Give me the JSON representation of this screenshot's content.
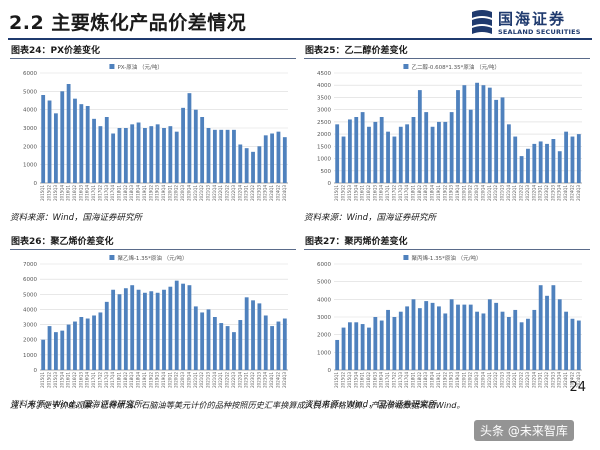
{
  "slide": {
    "title": "2.2 主要炼化产品价差情况",
    "logo_cn": "国海证券",
    "logo_en": "SEALAND SECURITIES",
    "page_number": "24",
    "note": "注：为了便于价差观察，已将原油、石脑油等美元计价的品种按照历史汇率换算成人民币价格测算。产品价格数据来自Wind。",
    "watermark": "头条 @未来智库"
  },
  "chart_data": [
    {
      "type": "bar",
      "header": "图表24：PX价差变化",
      "legend": "PX-原油 （元/吨）",
      "source": "资料来源：Wind，国海证券研究所",
      "ylim": [
        0,
        6000
      ],
      "yticks": [
        0,
        1000,
        2000,
        3000,
        4000,
        5000,
        6000
      ],
      "categories": [
        "2015Q1",
        "2015Q2",
        "2015Q3",
        "2015Q4",
        "2016Q1",
        "2016Q2",
        "2016Q3",
        "2016Q4",
        "2017Q1",
        "2017Q2",
        "2017Q3",
        "2017Q4",
        "2018Q1",
        "2018Q2",
        "2018Q3",
        "2018Q4",
        "2019Q1",
        "2019Q2",
        "2019Q3",
        "2019Q4",
        "2020Q1",
        "2020Q2",
        "2020Q3",
        "2020Q4",
        "2021Q1",
        "2021Q2",
        "2021Q3",
        "2021Q4",
        "2022Q1",
        "2022Q2",
        "2022Q3",
        "2022Q4",
        "2023Q1",
        "2023Q2",
        "2023Q3",
        "2023Q4",
        "2024Q1",
        "2024Q2",
        "2024Q3"
      ],
      "values": [
        4800,
        4500,
        3800,
        5000,
        5400,
        4600,
        4300,
        4200,
        3500,
        3100,
        3600,
        2700,
        3000,
        3000,
        3200,
        3300,
        3000,
        3100,
        3200,
        3000,
        3100,
        2800,
        4100,
        4900,
        4000,
        3600,
        3000,
        2900,
        2900,
        2900,
        2900,
        2100,
        1900,
        1700,
        2000,
        2600,
        2700,
        2800,
        2500
      ]
    },
    {
      "type": "bar",
      "header": "图表25：乙二醇价差变化",
      "legend": "乙二醇-0.608*1.35*原油 （元/吨）",
      "source": "资料来源：Wind，国海证券研究所",
      "ylim": [
        0,
        4500
      ],
      "yticks": [
        0,
        500,
        1000,
        1500,
        2000,
        2500,
        3000,
        3500,
        4000,
        4500
      ],
      "categories": [
        "2015Q1",
        "2015Q2",
        "2015Q3",
        "2015Q4",
        "2016Q1",
        "2016Q2",
        "2016Q3",
        "2016Q4",
        "2017Q1",
        "2017Q2",
        "2017Q3",
        "2017Q4",
        "2018Q1",
        "2018Q2",
        "2018Q3",
        "2018Q4",
        "2019Q1",
        "2019Q2",
        "2019Q3",
        "2019Q4",
        "2020Q1",
        "2020Q2",
        "2020Q3",
        "2020Q4",
        "2021Q1",
        "2021Q2",
        "2021Q3",
        "2021Q4",
        "2022Q1",
        "2022Q2",
        "2022Q3",
        "2022Q4",
        "2023Q1",
        "2023Q2",
        "2023Q3",
        "2023Q4",
        "2024Q1",
        "2024Q2",
        "2024Q3"
      ],
      "values": [
        2400,
        1900,
        2600,
        2700,
        2900,
        2300,
        2500,
        2700,
        2100,
        1900,
        2300,
        2400,
        2700,
        3800,
        2900,
        2300,
        2500,
        2500,
        2900,
        3800,
        4000,
        3000,
        4100,
        4000,
        3900,
        3400,
        3500,
        2400,
        1900,
        1100,
        1400,
        1600,
        1700,
        1600,
        1800,
        1300,
        2100,
        1900,
        2000
      ]
    },
    {
      "type": "bar",
      "header": "图表26：聚乙烯价差变化",
      "legend": "聚乙烯-1.35*原油 （元/吨）",
      "source": "资料来源：Wind，国海证券研究所",
      "ylim": [
        0,
        7000
      ],
      "yticks": [
        0,
        1000,
        2000,
        3000,
        4000,
        5000,
        6000,
        7000
      ],
      "categories": [
        "2015Q1",
        "2015Q2",
        "2015Q3",
        "2015Q4",
        "2016Q1",
        "2016Q2",
        "2016Q3",
        "2016Q4",
        "2017Q1",
        "2017Q2",
        "2017Q3",
        "2017Q4",
        "2018Q1",
        "2018Q2",
        "2018Q3",
        "2018Q4",
        "2019Q1",
        "2019Q2",
        "2019Q3",
        "2019Q4",
        "2020Q1",
        "2020Q2",
        "2020Q3",
        "2020Q4",
        "2021Q1",
        "2021Q2",
        "2021Q3",
        "2021Q4",
        "2022Q1",
        "2022Q2",
        "2022Q3",
        "2022Q4",
        "2023Q1",
        "2023Q2",
        "2023Q3",
        "2023Q4",
        "2024Q1",
        "2024Q2",
        "2024Q3"
      ],
      "values": [
        2000,
        2900,
        2500,
        2600,
        3000,
        3200,
        3500,
        3400,
        3600,
        3800,
        4500,
        5300,
        5000,
        5400,
        5600,
        5300,
        5100,
        5200,
        5100,
        5300,
        5500,
        5900,
        5700,
        5600,
        4200,
        3800,
        4000,
        3500,
        3100,
        2900,
        2500,
        3300,
        4800,
        4600,
        4400,
        3600,
        2900,
        3200,
        3400
      ]
    },
    {
      "type": "bar",
      "header": "图表27：聚丙烯价差变化",
      "legend": "聚丙烯-1.35*原油 （元/吨）",
      "source": "资料来源：Wind，国海证券研究所",
      "ylim": [
        0,
        6000
      ],
      "yticks": [
        0,
        1000,
        2000,
        3000,
        4000,
        5000,
        6000
      ],
      "categories": [
        "2015Q1",
        "2015Q2",
        "2015Q3",
        "2015Q4",
        "2016Q1",
        "2016Q2",
        "2016Q3",
        "2016Q4",
        "2017Q1",
        "2017Q2",
        "2017Q3",
        "2017Q4",
        "2018Q1",
        "2018Q2",
        "2018Q3",
        "2018Q4",
        "2019Q1",
        "2019Q2",
        "2019Q3",
        "2019Q4",
        "2020Q1",
        "2020Q2",
        "2020Q3",
        "2020Q4",
        "2021Q1",
        "2021Q2",
        "2021Q3",
        "2021Q4",
        "2022Q1",
        "2022Q2",
        "2022Q3",
        "2022Q4",
        "2023Q1",
        "2023Q2",
        "2023Q3",
        "2023Q4",
        "2024Q1",
        "2024Q2",
        "2024Q3"
      ],
      "values": [
        1700,
        2400,
        2700,
        2700,
        2600,
        2400,
        3000,
        2800,
        3400,
        3000,
        3300,
        3600,
        4000,
        3500,
        3900,
        3800,
        3600,
        3200,
        4000,
        3700,
        3700,
        3700,
        3300,
        3200,
        4000,
        3800,
        3300,
        3000,
        3400,
        2700,
        2900,
        3400,
        4800,
        4200,
        4800,
        4000,
        3300,
        2900,
        2800
      ]
    }
  ]
}
